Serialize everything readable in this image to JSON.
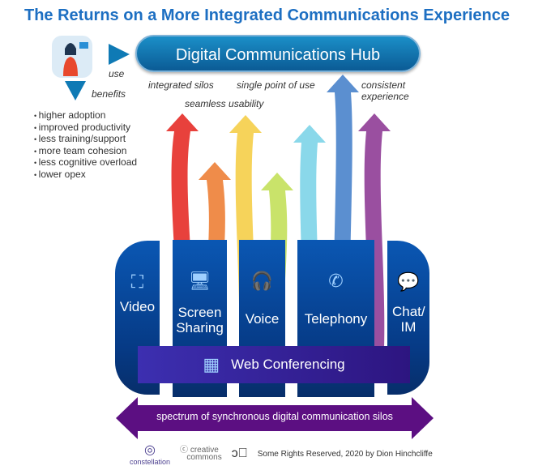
{
  "title": "The Returns on a More Integrated Communications Experience",
  "hub": "Digital Communications Hub",
  "use_label": "use",
  "benefits_label": "benefits",
  "benefits": [
    "higher adoption",
    "improved productivity",
    "less training/support",
    "more team cohesion",
    "less cognitive overload",
    "lower opex"
  ],
  "arrow_labels": {
    "integrated": "integrated silos",
    "seamless": "seamless usability",
    "single": "single point of use",
    "consistent": "consistent experience"
  },
  "arrow_colors": [
    "#e8413c",
    "#ef8c4a",
    "#f6d35a",
    "#c9e36a",
    "#8ad8ea",
    "#5b8fd0",
    "#9a4fa0"
  ],
  "silos": [
    {
      "label": "Video",
      "icon": "video-grid-icon"
    },
    {
      "label": "Screen Sharing",
      "icon": "monitor-icon"
    },
    {
      "label": "Voice",
      "icon": "headset-icon"
    },
    {
      "label": "Telephony",
      "icon": "phone-bubble-icon"
    },
    {
      "label": "Chat/ IM",
      "icon": "chat-icon"
    }
  ],
  "web_conferencing": "Web Conferencing",
  "spectrum": "spectrum of synchronous digital communication silos",
  "footer": {
    "logo": "constellation",
    "cc": "creative commons",
    "rights": "Some Rights Reserved, 2020 by Dion Hinchcliffe"
  }
}
